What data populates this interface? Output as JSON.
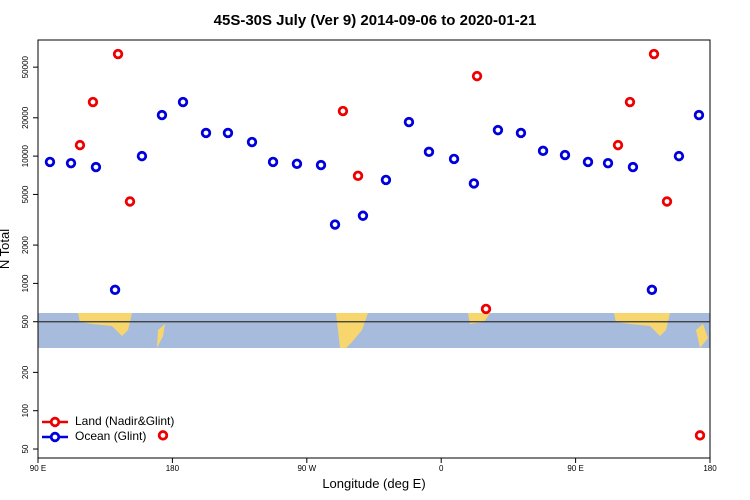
{
  "chart_data": {
    "type": "scatter",
    "title": "45S-30S July (Ver 9)   2014-09-06 to 2020-01-21",
    "x_label": "Longitude (deg E)",
    "y_label": "N Total",
    "xlim": [
      90,
      540
    ],
    "xticks": [
      {
        "value": 90,
        "label": "90 E"
      },
      180,
      {
        "value": 270,
        "label": "90 W"
      },
      {
        "value": 360,
        "label": "0"
      },
      {
        "value": 450,
        "label": "90 E"
      },
      {
        "value": 540,
        "label": "180"
      }
    ],
    "ylim": [
      42.5,
      81700
    ],
    "ylog": true,
    "yticks": [
      50,
      100,
      200,
      500,
      1000,
      2000,
      5000,
      10000,
      20000,
      50000
    ],
    "reference_line": 500,
    "legend_position": "bottom-left",
    "series": [
      {
        "name": "Land (Nadir&Glint)",
        "color": "#ee0000",
        "x": [
          118.1,
          126.8,
          143.6,
          151.6,
          173.7,
          294.2,
          304.3,
          384.0,
          390.0,
          478.4,
          486.4,
          502.5,
          511.2,
          533.3
        ],
        "values": [
          12200,
          26600,
          63400,
          4400,
          64,
          22600,
          7000,
          42500,
          630,
          12200,
          26600,
          63400,
          4400,
          64
        ]
      },
      {
        "name": "Ocean (Glint)",
        "color": "#0000dd",
        "x": [
          98.0,
          112.1,
          128.8,
          141.6,
          159.6,
          173.0,
          187.1,
          202.5,
          217.2,
          233.3,
          247.4,
          263.4,
          279.5,
          288.9,
          307.6,
          323.0,
          338.4,
          351.8,
          368.6,
          381.9,
          398.0,
          413.4,
          428.2,
          442.9,
          458.3,
          471.7,
          488.4,
          501.1,
          519.2,
          532.6
        ],
        "values": [
          9000,
          8800,
          8200,
          890,
          10000,
          21000,
          26600,
          15200,
          15200,
          12900,
          9000,
          8700,
          8500,
          2900,
          3400,
          6500,
          18500,
          10800,
          9500,
          6100,
          16000,
          15200,
          11000,
          10200,
          9000,
          8800,
          8200,
          890,
          10000,
          21000
        ]
      }
    ]
  }
}
